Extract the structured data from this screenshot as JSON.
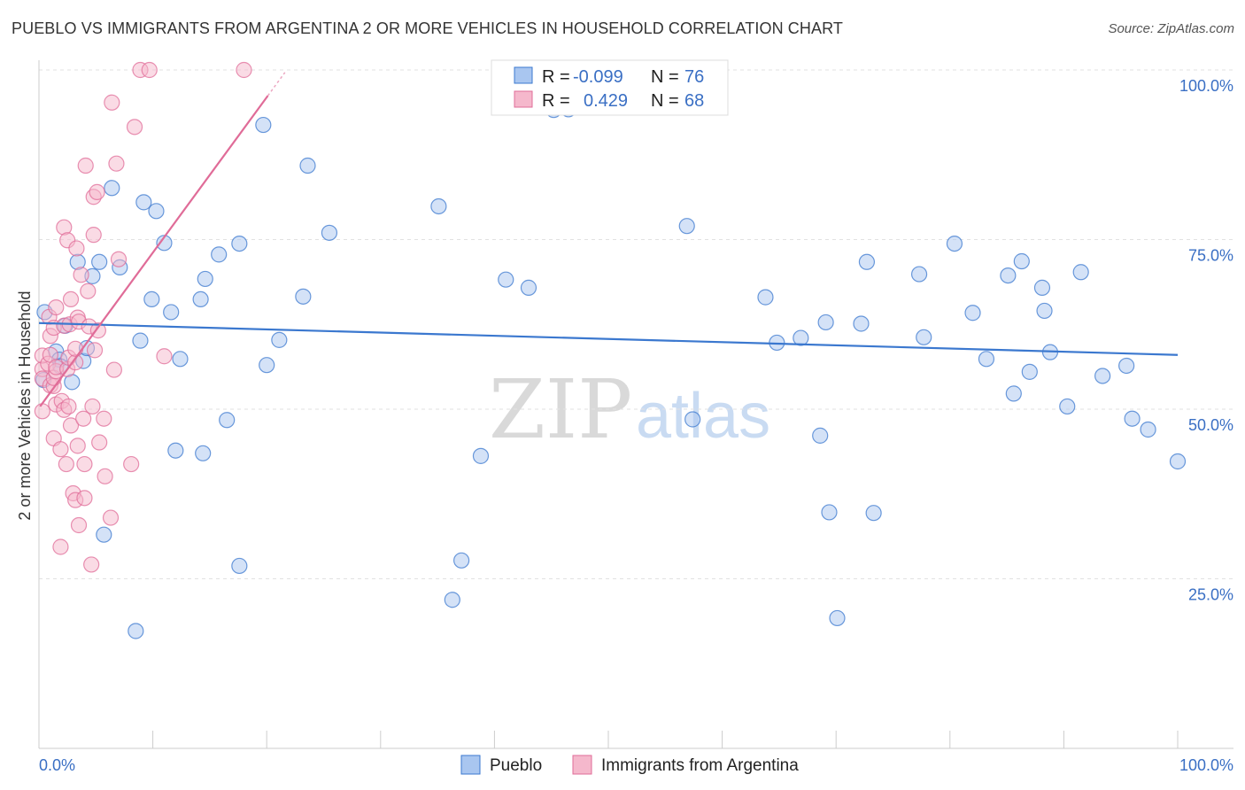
{
  "title": "PUEBLO VS IMMIGRANTS FROM ARGENTINA 2 OR MORE VEHICLES IN HOUSEHOLD CORRELATION CHART",
  "source": "Source: ZipAtlas.com",
  "watermark": {
    "zip": "ZIP",
    "atlas": "atlas"
  },
  "colors": {
    "blue": "#3b78cf",
    "blue_fill": "#a9c6f0",
    "pink": "#e06c98",
    "pink_fill": "#f5b8cc",
    "accent_text": "#3a6fc4"
  },
  "chart_data": {
    "type": "scatter",
    "title": "PUEBLO VS IMMIGRANTS FROM ARGENTINA 2 OR MORE VEHICLES IN HOUSEHOLD CORRELATION CHART",
    "xlabel": "",
    "ylabel": "2 or more Vehicles in Household",
    "xlim": [
      0,
      100
    ],
    "ylim": [
      0,
      100
    ],
    "x_tick_labels": [
      "0.0%",
      "100.0%"
    ],
    "y_tick_labels": [
      "100.0%",
      "75.0%",
      "50.0%",
      "25.0%"
    ],
    "y_ticks": [
      100,
      75,
      50,
      25
    ],
    "legend": [
      {
        "name": "Pueblo",
        "r_label": "R =",
        "r": "-0.099",
        "n_label": "N =",
        "n": "76"
      },
      {
        "name": "Immigrants from Argentina",
        "r_label": "R =",
        "r": "0.429",
        "n_label": "N =",
        "n": "68"
      }
    ],
    "series": [
      {
        "name": "Pueblo",
        "color": "#3b78cf",
        "trend": {
          "x": [
            0,
            100
          ],
          "y": [
            62.7,
            58.0
          ]
        },
        "points": [
          [
            0.4,
            54.3
          ],
          [
            0.5,
            64.3
          ],
          [
            1.5,
            58.5
          ],
          [
            1.8,
            57.3
          ],
          [
            1.9,
            56.3
          ],
          [
            2.3,
            62.3
          ],
          [
            2.9,
            54.0
          ],
          [
            3.4,
            71.7
          ],
          [
            3.9,
            57.1
          ],
          [
            4.2,
            59.0
          ],
          [
            4.7,
            69.6
          ],
          [
            5.3,
            71.7
          ],
          [
            5.7,
            31.5
          ],
          [
            6.4,
            82.6
          ],
          [
            7.1,
            70.9
          ],
          [
            8.5,
            17.3
          ],
          [
            8.9,
            60.1
          ],
          [
            9.2,
            80.5
          ],
          [
            9.9,
            66.2
          ],
          [
            10.3,
            79.2
          ],
          [
            11.0,
            74.5
          ],
          [
            11.6,
            64.3
          ],
          [
            12.0,
            43.9
          ],
          [
            12.4,
            57.4
          ],
          [
            14.2,
            66.2
          ],
          [
            14.4,
            43.5
          ],
          [
            14.6,
            69.2
          ],
          [
            15.8,
            72.8
          ],
          [
            16.5,
            48.4
          ],
          [
            17.6,
            74.4
          ],
          [
            17.6,
            26.9
          ],
          [
            19.7,
            91.9
          ],
          [
            20.0,
            56.5
          ],
          [
            21.1,
            60.2
          ],
          [
            23.2,
            66.6
          ],
          [
            23.6,
            85.9
          ],
          [
            25.5,
            76.0
          ],
          [
            35.1,
            79.9
          ],
          [
            36.3,
            21.9
          ],
          [
            37.1,
            27.7
          ],
          [
            38.8,
            43.1
          ],
          [
            41.0,
            69.1
          ],
          [
            43.0,
            67.9
          ],
          [
            45.2,
            94.1
          ],
          [
            46.5,
            94.2
          ],
          [
            56.9,
            77.0
          ],
          [
            57.4,
            48.5
          ],
          [
            63.8,
            66.5
          ],
          [
            64.8,
            59.8
          ],
          [
            66.9,
            60.5
          ],
          [
            68.6,
            46.1
          ],
          [
            69.1,
            62.8
          ],
          [
            69.4,
            34.8
          ],
          [
            70.1,
            19.2
          ],
          [
            72.2,
            62.6
          ],
          [
            72.7,
            71.7
          ],
          [
            73.3,
            34.7
          ],
          [
            77.3,
            69.9
          ],
          [
            77.7,
            60.6
          ],
          [
            80.4,
            74.4
          ],
          [
            82.0,
            64.2
          ],
          [
            83.2,
            57.4
          ],
          [
            85.1,
            69.7
          ],
          [
            85.6,
            52.3
          ],
          [
            86.3,
            71.8
          ],
          [
            87.0,
            55.5
          ],
          [
            88.1,
            67.9
          ],
          [
            88.3,
            64.5
          ],
          [
            88.8,
            58.4
          ],
          [
            90.3,
            50.4
          ],
          [
            91.5,
            70.2
          ],
          [
            93.4,
            54.9
          ],
          [
            95.5,
            56.4
          ],
          [
            96.0,
            48.6
          ],
          [
            97.4,
            47.0
          ],
          [
            100.0,
            42.3
          ]
        ]
      },
      {
        "name": "Immigrants from Argentina",
        "color": "#e06c98",
        "trend": {
          "x": [
            0.1,
            20.1
          ],
          "y": [
            50.4,
            96.2
          ]
        },
        "points": [
          [
            0.3,
            49.7
          ],
          [
            0.3,
            55.9
          ],
          [
            0.3,
            54.5
          ],
          [
            0.3,
            57.9
          ],
          [
            0.8,
            56.7
          ],
          [
            0.9,
            63.6
          ],
          [
            1.0,
            60.8
          ],
          [
            1.0,
            53.5
          ],
          [
            1.0,
            58.0
          ],
          [
            1.3,
            45.7
          ],
          [
            1.3,
            53.4
          ],
          [
            1.3,
            54.6
          ],
          [
            1.3,
            62.0
          ],
          [
            1.5,
            50.7
          ],
          [
            1.5,
            55.6
          ],
          [
            1.5,
            56.2
          ],
          [
            1.5,
            65.0
          ],
          [
            1.9,
            29.7
          ],
          [
            1.9,
            44.1
          ],
          [
            2.0,
            51.2
          ],
          [
            2.2,
            76.8
          ],
          [
            2.2,
            49.9
          ],
          [
            2.2,
            62.3
          ],
          [
            2.4,
            41.9
          ],
          [
            2.5,
            74.9
          ],
          [
            2.5,
            55.9
          ],
          [
            2.6,
            57.6
          ],
          [
            2.6,
            50.4
          ],
          [
            2.7,
            62.5
          ],
          [
            2.8,
            47.6
          ],
          [
            2.8,
            66.2
          ],
          [
            3.0,
            37.6
          ],
          [
            3.2,
            36.6
          ],
          [
            3.2,
            56.9
          ],
          [
            3.2,
            58.9
          ],
          [
            3.3,
            73.7
          ],
          [
            3.4,
            44.6
          ],
          [
            3.4,
            63.5
          ],
          [
            3.5,
            32.9
          ],
          [
            3.5,
            62.9
          ],
          [
            3.7,
            69.8
          ],
          [
            3.9,
            48.6
          ],
          [
            4.0,
            41.9
          ],
          [
            4.0,
            36.9
          ],
          [
            4.1,
            85.9
          ],
          [
            4.3,
            67.4
          ],
          [
            4.4,
            62.2
          ],
          [
            4.6,
            27.1
          ],
          [
            4.7,
            50.4
          ],
          [
            4.8,
            81.3
          ],
          [
            4.8,
            75.7
          ],
          [
            4.9,
            58.7
          ],
          [
            5.1,
            82.0
          ],
          [
            5.2,
            61.6
          ],
          [
            5.3,
            45.1
          ],
          [
            5.7,
            48.6
          ],
          [
            5.8,
            40.1
          ],
          [
            6.3,
            34.0
          ],
          [
            6.4,
            95.2
          ],
          [
            6.6,
            55.8
          ],
          [
            6.8,
            86.2
          ],
          [
            7.0,
            72.1
          ],
          [
            8.1,
            41.9
          ],
          [
            8.4,
            91.6
          ],
          [
            8.9,
            100
          ],
          [
            9.7,
            100
          ],
          [
            11.0,
            57.8
          ],
          [
            18.0,
            100
          ]
        ]
      }
    ]
  }
}
